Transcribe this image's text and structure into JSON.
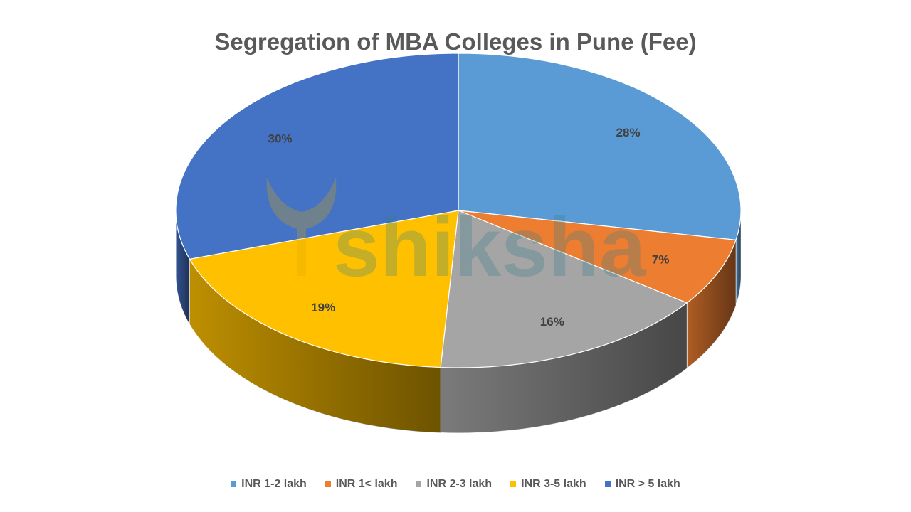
{
  "chart_data": {
    "type": "pie",
    "title": "Segregation of MBA Colleges in Pune (Fee)",
    "categories": [
      "INR 1-2 lakh",
      "INR 1< lakh",
      "INR 2-3 lakh",
      "INR 3-5 lakh",
      "INR > 5 lakh"
    ],
    "values": [
      28,
      7,
      16,
      19,
      30
    ],
    "labels": [
      "28%",
      "7%",
      "16%",
      "19%",
      "30%"
    ],
    "colors": [
      "#5B9BD5",
      "#ED7D31",
      "#A5A5A5",
      "#FFC000",
      "#4472C4"
    ],
    "legend_position": "bottom",
    "style": "3d-pie"
  },
  "watermark": {
    "text": "shiksha"
  }
}
